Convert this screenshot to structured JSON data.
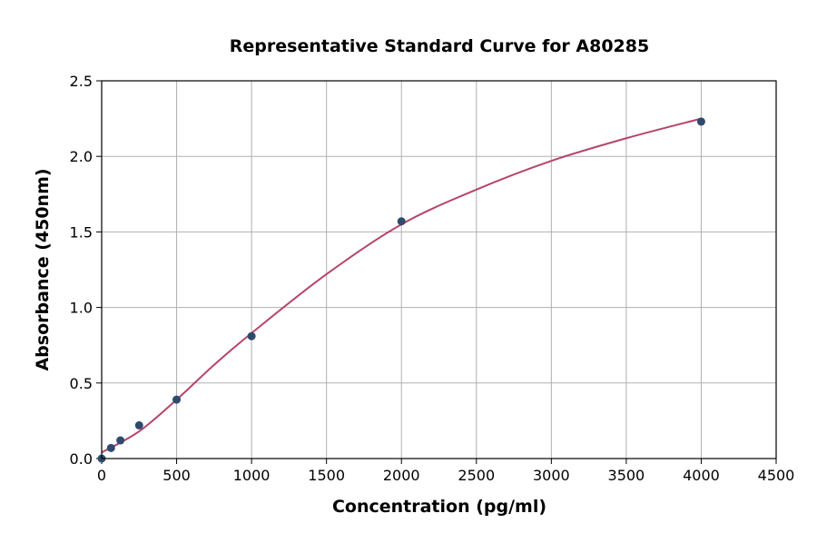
{
  "chart_data": {
    "type": "scatter",
    "title": "Representative Standard Curve for A80285",
    "xlabel": "Concentration (pg/ml)",
    "ylabel": "Absorbance (450nm)",
    "xlim": [
      0,
      4500
    ],
    "ylim": [
      0,
      2.5
    ],
    "xticks": [
      0,
      500,
      1000,
      1500,
      2000,
      2500,
      3000,
      3500,
      4000,
      4500
    ],
    "yticks": [
      "0.0",
      "0.5",
      "1.0",
      "1.5",
      "2.0",
      "2.5"
    ],
    "grid": true,
    "points": {
      "x": [
        0,
        62.5,
        125,
        250,
        500,
        1000,
        2000,
        4000
      ],
      "y": [
        0.0,
        0.07,
        0.12,
        0.22,
        0.39,
        0.81,
        1.57,
        2.23
      ],
      "color": "#2e4a6e"
    },
    "fit_curve": {
      "x": [
        0,
        250,
        500,
        750,
        1000,
        1500,
        2000,
        2500,
        3000,
        3500,
        4000
      ],
      "y": [
        0.04,
        0.18,
        0.39,
        0.62,
        0.83,
        1.22,
        1.55,
        1.78,
        1.97,
        2.12,
        2.25
      ],
      "color": "#b5456b"
    }
  }
}
